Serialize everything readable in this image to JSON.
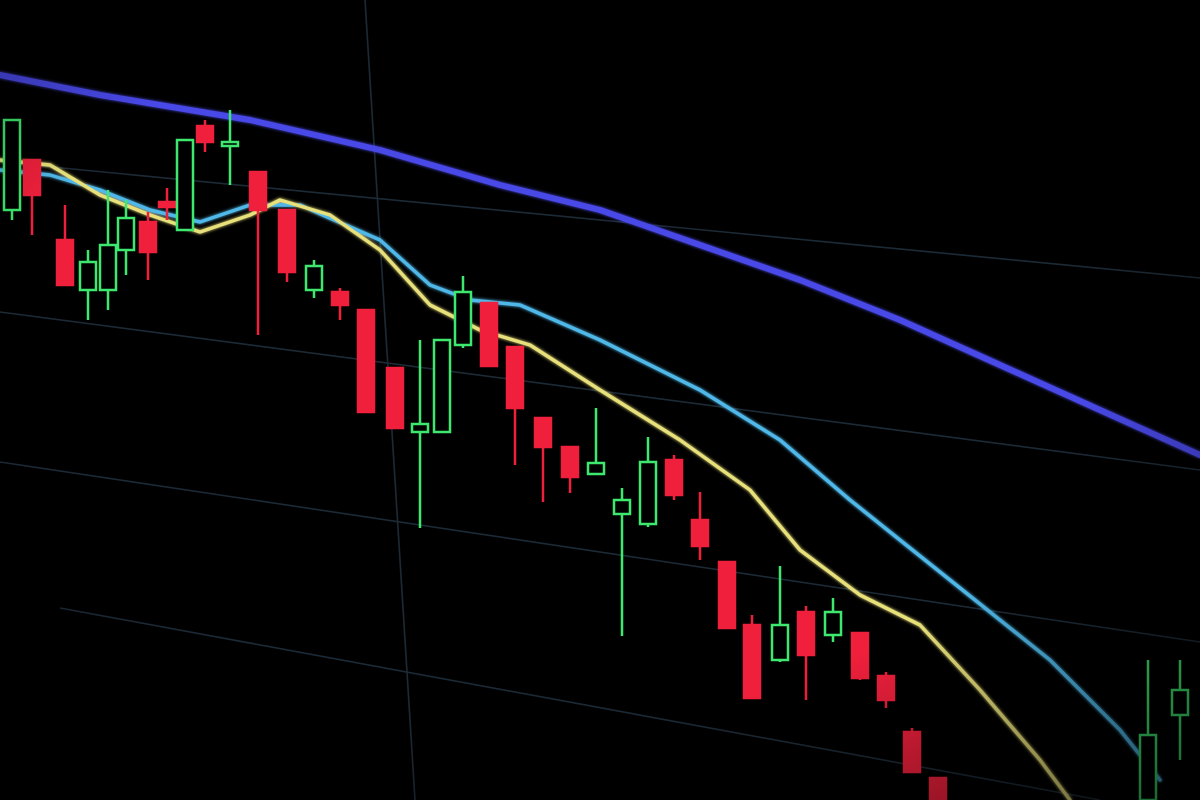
{
  "chart_data": {
    "type": "candlestick",
    "xlim": [
      0,
      120
    ],
    "ylim": [
      0,
      80
    ],
    "up_color": "#3ee86e",
    "down_color": "#f0203c",
    "x": [
      1.2,
      3.2,
      6.5,
      8.8,
      10.8,
      12.6,
      14.8,
      16.7,
      18.5,
      20.5,
      23,
      25.8,
      28.7,
      31.4,
      34,
      36.6,
      39.5,
      42,
      44.2,
      46.3,
      48.9,
      51.5,
      54.3,
      57,
      59.6,
      62.2,
      64.8,
      67.4,
      70,
      72.7,
      75.2,
      78,
      80.6,
      83.3,
      86,
      88.6,
      91.2,
      93.8,
      114.8,
      118
    ],
    "open": [
      59,
      64,
      56,
      51,
      51,
      55,
      57.8,
      59.8,
      57,
      67.4,
      65.4,
      62.8,
      59,
      51,
      50.8,
      49,
      43.2,
      36.8,
      36.8,
      45.5,
      49.7,
      45.3,
      38.2,
      35.3,
      32.6,
      28.6,
      27.6,
      34,
      28,
      23.8,
      17.5,
      14,
      18.8,
      16.5,
      16.7,
      12.4,
      6.8,
      2.2,
      0,
      8.5
    ],
    "high": [
      68,
      64,
      59.5,
      55,
      61,
      60,
      58.8,
      61.2,
      66,
      68,
      69,
      62.8,
      59,
      54,
      51.2,
      49,
      43.2,
      46,
      46,
      52.4,
      49.7,
      45.3,
      38.2,
      35.3,
      39.2,
      31.2,
      36.3,
      34.5,
      30.8,
      23.8,
      18.5,
      23.4,
      19.4,
      20.2,
      16.7,
      12.8,
      7.2,
      2.2,
      14,
      14
    ],
    "low": [
      58,
      56.5,
      51.5,
      48,
      49,
      52.5,
      52,
      58,
      57,
      64.8,
      61.5,
      46.5,
      51.8,
      50.2,
      48,
      38.8,
      37.2,
      27.2,
      36.8,
      45.2,
      43.4,
      33.5,
      29.8,
      30.7,
      32.5,
      16.4,
      27.3,
      30,
      24,
      17.2,
      10.2,
      13.8,
      10,
      15.8,
      12,
      9.2,
      2.8,
      0,
      0,
      4
    ],
    "close": [
      68,
      60.5,
      51.5,
      53.8,
      55.5,
      58.2,
      54.8,
      59.3,
      66,
      65.8,
      65.8,
      59,
      52.8,
      53.4,
      49.5,
      38.8,
      37.2,
      37.6,
      46,
      50.8,
      43.4,
      39.2,
      35.3,
      32.3,
      33.7,
      30,
      33.8,
      30.5,
      25.4,
      17.2,
      10.2,
      17.5,
      14.5,
      18.8,
      12.2,
      10,
      2.8,
      0,
      6.5,
      11
    ],
    "lines": [
      {
        "color": "#4a48e8",
        "x": [
          0,
          10,
          25,
          38,
          50,
          60,
          70,
          80,
          90,
          100,
          110,
          120
        ],
        "values": [
          72.5,
          70.5,
          68,
          65,
          61.5,
          59,
          55.5,
          52,
          48,
          43.5,
          39,
          34.5
        ]
      },
      {
        "color": "#4fb8e8",
        "x": [
          0,
          5,
          10,
          15,
          20,
          25,
          30,
          38,
          43,
          47,
          52,
          60,
          70,
          78,
          85,
          95,
          105,
          112,
          116
        ],
        "values": [
          63,
          62.5,
          61,
          59,
          57.8,
          59.5,
          59.5,
          56,
          51.5,
          50,
          49.5,
          46,
          41,
          36,
          30,
          22,
          14,
          7,
          2
        ]
      },
      {
        "color": "#e8e07a",
        "x": [
          0,
          5,
          10,
          15,
          20,
          25,
          28,
          33,
          38,
          43,
          48,
          53,
          60,
          68,
          75,
          80,
          86,
          92,
          98,
          104,
          107
        ],
        "values": [
          64,
          63.5,
          60.5,
          58.5,
          56.8,
          58.5,
          60,
          58.5,
          55,
          49.5,
          47,
          45.5,
          41,
          36,
          31,
          25,
          20.5,
          17.5,
          11,
          4,
          0
        ]
      }
    ]
  }
}
